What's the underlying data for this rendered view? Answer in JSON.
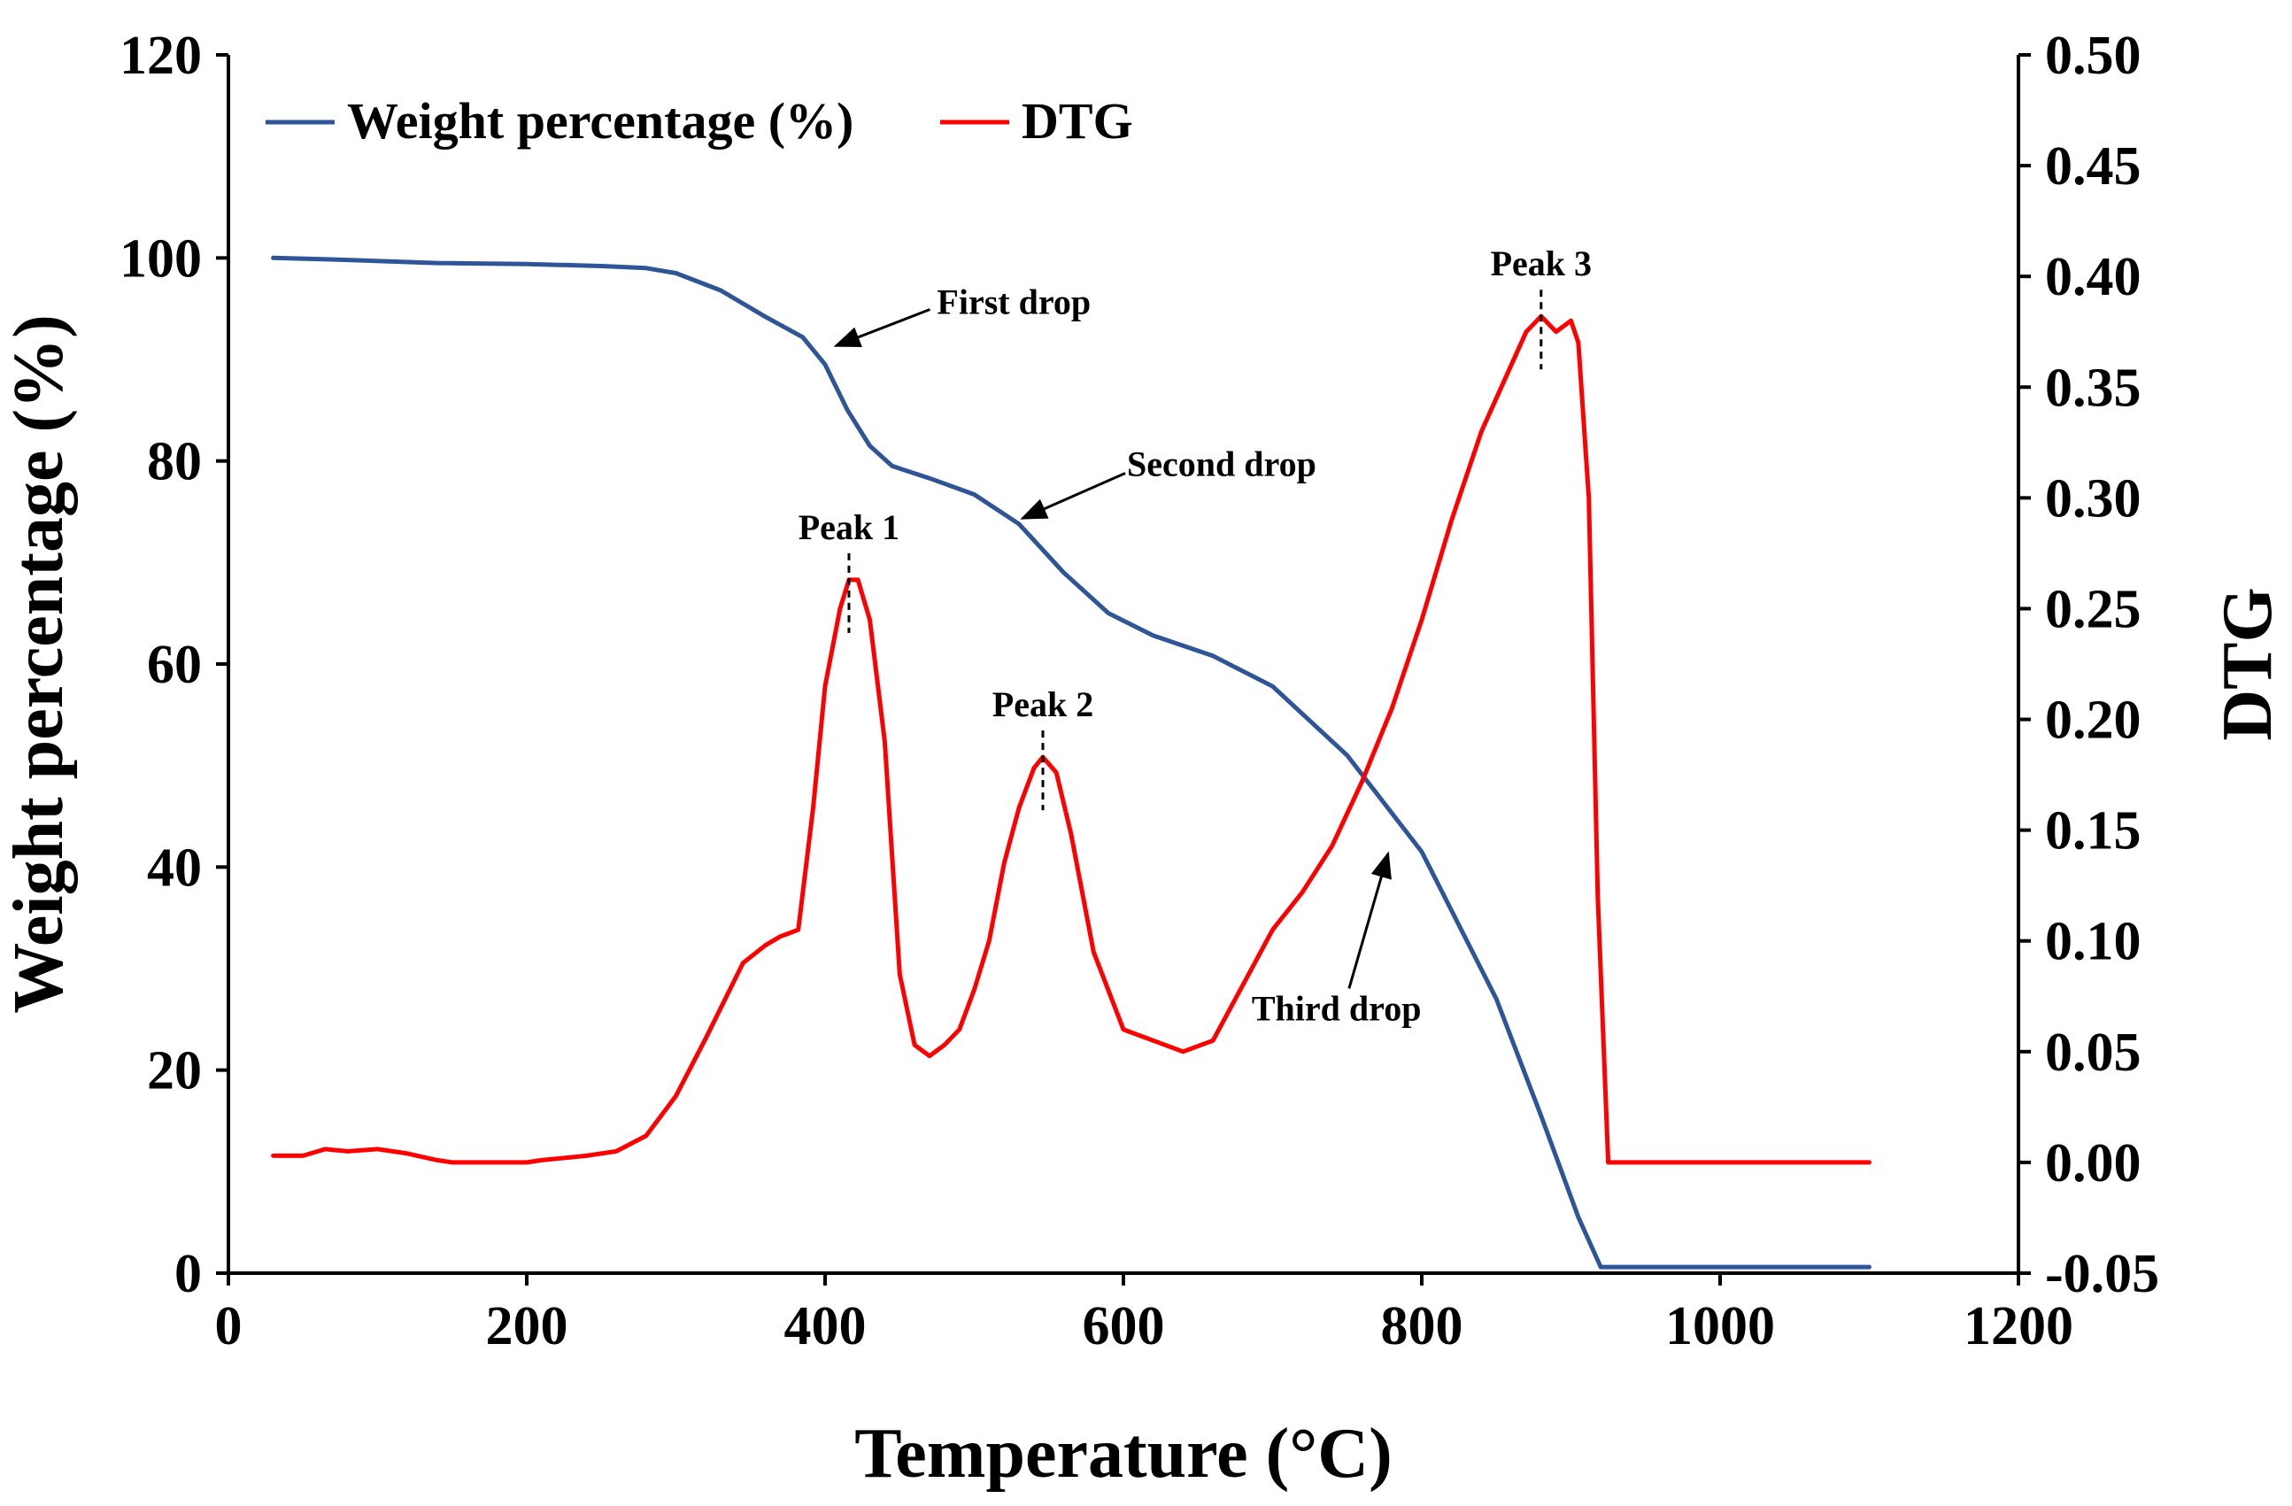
{
  "chart_data": {
    "type": "line",
    "title": "",
    "xlabel": "Temperature (°C)",
    "ylabel": "Weight percentage (%)",
    "y2label": "DTG",
    "xlim": [
      0,
      1200
    ],
    "ylim": [
      0,
      120
    ],
    "y2lim": [
      -0.05,
      0.5
    ],
    "grid": false,
    "legend_position": "top-left",
    "x_ticks": [
      0,
      200,
      400,
      600,
      800,
      1000,
      1200
    ],
    "x_tick_labels": [
      "0",
      "200",
      "400",
      "600",
      "800",
      "1000",
      "1200"
    ],
    "y_ticks": [
      0,
      20,
      40,
      60,
      80,
      100,
      120
    ],
    "y_tick_labels": [
      "0",
      "20",
      "40",
      "60",
      "80",
      "100",
      "120"
    ],
    "y2_ticks": [
      -0.05,
      0.0,
      0.05,
      0.1,
      0.15,
      0.2,
      0.25,
      0.3,
      0.35,
      0.4,
      0.45,
      0.5
    ],
    "y2_tick_labels": [
      "-0.05",
      "0.00",
      "0.05",
      "0.10",
      "0.15",
      "0.20",
      "0.25",
      "0.30",
      "0.35",
      "0.40",
      "0.45",
      "0.50"
    ],
    "series": [
      {
        "name": "Weight percentage (%)",
        "axis": "left",
        "color": "#2E5597",
        "x": [
          30,
          80,
          140,
          200,
          250,
          280,
          300,
          330,
          360,
          385,
          400,
          415,
          430,
          445,
          470,
          500,
          530,
          560,
          590,
          620,
          660,
          700,
          750,
          800,
          850,
          880,
          905,
          920,
          960,
          1000,
          1050,
          1100
        ],
        "y": [
          100,
          99.8,
          99.5,
          99.4,
          99.2,
          99.0,
          98.5,
          96.8,
          94.2,
          92.2,
          89.5,
          85.0,
          81.5,
          79.5,
          78.3,
          76.7,
          73.8,
          69.0,
          65.0,
          62.8,
          60.8,
          57.8,
          51.0,
          41.5,
          27.0,
          15.5,
          5.5,
          0.6,
          0.6,
          0.6,
          0.6,
          0.6
        ]
      },
      {
        "name": "DTG",
        "axis": "right",
        "color": "#FF0000",
        "x": [
          30,
          50,
          65,
          80,
          100,
          120,
          140,
          150,
          180,
          200,
          210,
          240,
          260,
          280,
          300,
          320,
          345,
          360,
          370,
          382,
          392,
          400,
          410,
          416,
          422,
          430,
          440,
          450,
          460,
          470,
          480,
          490,
          500,
          510,
          520,
          530,
          540,
          546,
          555,
          565,
          580,
          600,
          620,
          640,
          660,
          680,
          700,
          720,
          740,
          760,
          780,
          800,
          820,
          840,
          860,
          870,
          880,
          890,
          900,
          905,
          912,
          918,
          925,
          950,
          1000,
          1050,
          1100
        ],
        "y": [
          0.003,
          0.003,
          0.006,
          0.005,
          0.006,
          0.004,
          0.001,
          0.0,
          0.0,
          0.0,
          0.001,
          0.003,
          0.005,
          0.012,
          0.03,
          0.056,
          0.09,
          0.098,
          0.102,
          0.105,
          0.16,
          0.215,
          0.25,
          0.263,
          0.263,
          0.245,
          0.19,
          0.085,
          0.053,
          0.048,
          0.053,
          0.06,
          0.078,
          0.1,
          0.135,
          0.16,
          0.178,
          0.183,
          0.176,
          0.148,
          0.095,
          0.06,
          0.055,
          0.05,
          0.055,
          0.08,
          0.105,
          0.122,
          0.143,
          0.172,
          0.205,
          0.245,
          0.29,
          0.33,
          0.36,
          0.375,
          0.382,
          0.375,
          0.38,
          0.37,
          0.3,
          0.12,
          0.0,
          0.0,
          0.0,
          0.0,
          0.0
        ]
      }
    ],
    "annotations": [
      {
        "id": "peak-1",
        "text": "Peak 1",
        "x": 416,
        "y2": 0.263
      },
      {
        "id": "peak-2",
        "text": "Peak 2",
        "x": 546,
        "y2": 0.183
      },
      {
        "id": "peak-3",
        "text": "Peak 3",
        "x": 880,
        "y2": 0.382
      },
      {
        "id": "first-drop",
        "text": "First drop",
        "x": 405,
        "y": 91
      },
      {
        "id": "second-drop",
        "text": "Second drop",
        "x": 530,
        "y": 74
      },
      {
        "id": "third-drop",
        "text": "Third drop",
        "x": 775,
        "y": 42
      }
    ]
  }
}
